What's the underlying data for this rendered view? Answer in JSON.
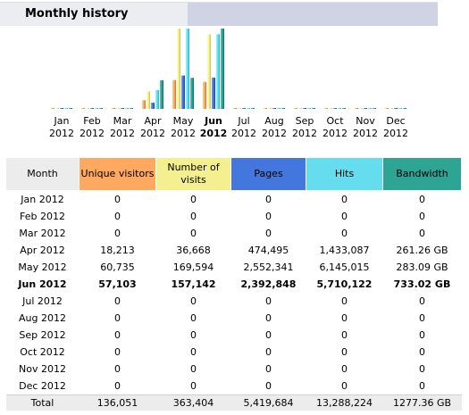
{
  "header": {
    "title": "Monthly history"
  },
  "colors": {
    "unique_visitors": "#ffa860",
    "visits": "#f4f090",
    "pages": "#4477dd",
    "hits": "#66ddee",
    "bandwidth": "#2ea495"
  },
  "chart_data": {
    "type": "bar",
    "categories": [
      "Jan 2012",
      "Feb 2012",
      "Mar 2012",
      "Apr 2012",
      "May 2012",
      "Jun 2012",
      "Jul 2012",
      "Aug 2012",
      "Sep 2012",
      "Oct 2012",
      "Nov 2012",
      "Dec 2012"
    ],
    "month_labels": [
      {
        "m": "Jan",
        "y": "2012",
        "bold": false
      },
      {
        "m": "Feb",
        "y": "2012",
        "bold": false
      },
      {
        "m": "Mar",
        "y": "2012",
        "bold": false
      },
      {
        "m": "Apr",
        "y": "2012",
        "bold": false
      },
      {
        "m": "May",
        "y": "2012",
        "bold": false
      },
      {
        "m": "Jun",
        "y": "2012",
        "bold": true
      },
      {
        "m": "Jul",
        "y": "2012",
        "bold": false
      },
      {
        "m": "Aug",
        "y": "2012",
        "bold": false
      },
      {
        "m": "Sep",
        "y": "2012",
        "bold": false
      },
      {
        "m": "Oct",
        "y": "2012",
        "bold": false
      },
      {
        "m": "Nov",
        "y": "2012",
        "bold": false
      },
      {
        "m": "Dec",
        "y": "2012",
        "bold": false
      }
    ],
    "series": [
      {
        "key": "unique_visitors",
        "values": [
          0,
          0,
          0,
          18213,
          60735,
          57103,
          0,
          0,
          0,
          0,
          0,
          0
        ]
      },
      {
        "key": "visits",
        "values": [
          0,
          0,
          0,
          36668,
          169594,
          157142,
          0,
          0,
          0,
          0,
          0,
          0
        ]
      },
      {
        "key": "pages",
        "values": [
          0,
          0,
          0,
          474495,
          2552341,
          2392848,
          0,
          0,
          0,
          0,
          0,
          0
        ]
      },
      {
        "key": "hits",
        "values": [
          0,
          0,
          0,
          1433087,
          6145015,
          5710122,
          0,
          0,
          0,
          0,
          0,
          0
        ]
      },
      {
        "key": "bandwidth",
        "values": [
          0,
          0,
          0,
          261.26,
          283.09,
          733.02,
          0,
          0,
          0,
          0,
          0,
          0
        ]
      }
    ],
    "scale_note": "visitors & visits share one scale; pages & hits share one scale; bandwidth on its own scale",
    "grid": false,
    "legend": "none"
  },
  "table": {
    "headers": [
      "Month",
      "Unique visitors",
      "Number of visits",
      "Pages",
      "Hits",
      "Bandwidth"
    ],
    "rows": [
      {
        "month": "Jan 2012",
        "unique": "0",
        "visits": "0",
        "pages": "0",
        "hits": "0",
        "bandwidth": "0",
        "bold": false
      },
      {
        "month": "Feb 2012",
        "unique": "0",
        "visits": "0",
        "pages": "0",
        "hits": "0",
        "bandwidth": "0",
        "bold": false
      },
      {
        "month": "Mar 2012",
        "unique": "0",
        "visits": "0",
        "pages": "0",
        "hits": "0",
        "bandwidth": "0",
        "bold": false
      },
      {
        "month": "Apr 2012",
        "unique": "18,213",
        "visits": "36,668",
        "pages": "474,495",
        "hits": "1,433,087",
        "bandwidth": "261.26 GB",
        "bold": false
      },
      {
        "month": "May 2012",
        "unique": "60,735",
        "visits": "169,594",
        "pages": "2,552,341",
        "hits": "6,145,015",
        "bandwidth": "283.09 GB",
        "bold": false
      },
      {
        "month": "Jun 2012",
        "unique": "57,103",
        "visits": "157,142",
        "pages": "2,392,848",
        "hits": "5,710,122",
        "bandwidth": "733.02 GB",
        "bold": true
      },
      {
        "month": "Jul 2012",
        "unique": "0",
        "visits": "0",
        "pages": "0",
        "hits": "0",
        "bandwidth": "0",
        "bold": false
      },
      {
        "month": "Aug 2012",
        "unique": "0",
        "visits": "0",
        "pages": "0",
        "hits": "0",
        "bandwidth": "0",
        "bold": false
      },
      {
        "month": "Sep 2012",
        "unique": "0",
        "visits": "0",
        "pages": "0",
        "hits": "0",
        "bandwidth": "0",
        "bold": false
      },
      {
        "month": "Oct 2012",
        "unique": "0",
        "visits": "0",
        "pages": "0",
        "hits": "0",
        "bandwidth": "0",
        "bold": false
      },
      {
        "month": "Nov 2012",
        "unique": "0",
        "visits": "0",
        "pages": "0",
        "hits": "0",
        "bandwidth": "0",
        "bold": false
      },
      {
        "month": "Dec 2012",
        "unique": "0",
        "visits": "0",
        "pages": "0",
        "hits": "0",
        "bandwidth": "0",
        "bold": false
      }
    ],
    "total": {
      "month": "Total",
      "unique": "136,051",
      "visits": "363,404",
      "pages": "5,419,684",
      "hits": "13,288,224",
      "bandwidth": "1277.36 GB"
    }
  }
}
